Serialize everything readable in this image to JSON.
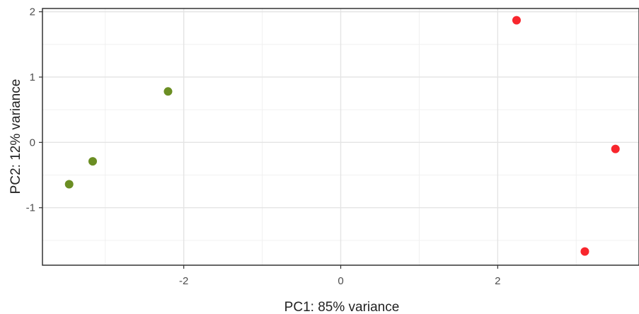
{
  "chart_data": {
    "type": "scatter",
    "xlabel": "PC1: 85% variance",
    "ylabel": "PC2: 12% variance",
    "xlim": [
      -3.8,
      3.8
    ],
    "ylim": [
      -1.88,
      2.05
    ],
    "x_ticks": [
      -2,
      0,
      2
    ],
    "x_tick_labels": [
      "-2",
      "0",
      "2"
    ],
    "y_ticks": [
      -1,
      0,
      1,
      2
    ],
    "y_tick_labels": [
      "-1",
      "0",
      "1",
      "2"
    ],
    "grid": true,
    "legend": "none",
    "series": [
      {
        "color": "#6b8e23",
        "points": [
          {
            "x": -3.46,
            "y": -0.64
          },
          {
            "x": -3.16,
            "y": -0.29
          },
          {
            "x": -2.2,
            "y": 0.78
          }
        ]
      },
      {
        "color": "#f8262d",
        "points": [
          {
            "x": 2.24,
            "y": 1.87
          },
          {
            "x": 3.5,
            "y": -0.1
          },
          {
            "x": 3.11,
            "y": -1.67
          }
        ]
      }
    ]
  }
}
